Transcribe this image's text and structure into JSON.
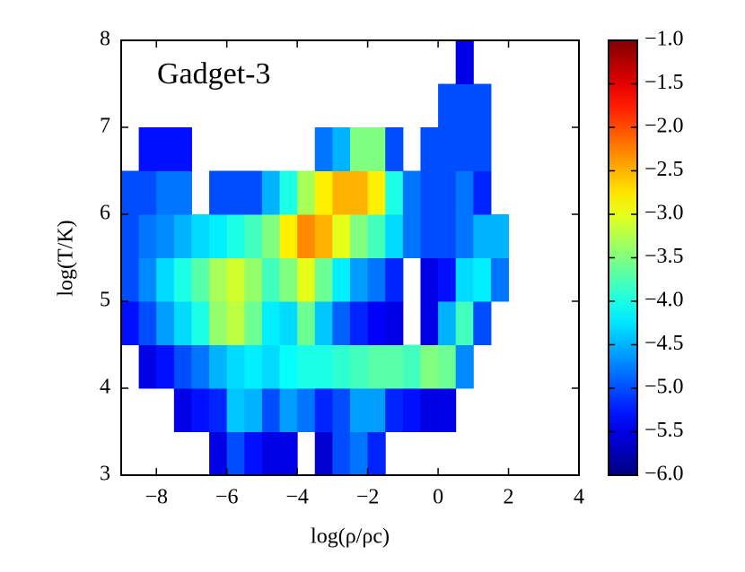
{
  "chart_data": {
    "type": "heatmap",
    "annotation": "Gadget-3",
    "x_label": "log(ρ/ρc)",
    "y_label": "log(T/K)",
    "xlim": [
      -9,
      4
    ],
    "ylim": [
      3,
      8
    ],
    "xticks": [
      {
        "value": -8,
        "label": "−8"
      },
      {
        "value": -6,
        "label": "−6"
      },
      {
        "value": -4,
        "label": "−4"
      },
      {
        "value": -2,
        "label": "−2"
      },
      0,
      2,
      4
    ],
    "yticks": [
      3,
      4,
      5,
      6,
      7,
      8
    ],
    "clim": [
      -6,
      -1
    ],
    "cticks": [
      {
        "value": -1,
        "label": "−1.0"
      },
      {
        "value": -1.5,
        "label": "−1.5"
      },
      {
        "value": -2,
        "label": "−2.0"
      },
      {
        "value": -2.5,
        "label": "−2.5"
      },
      {
        "value": -3,
        "label": "−3.0"
      },
      {
        "value": -3.5,
        "label": "−3.5"
      },
      {
        "value": -4,
        "label": "−4.0"
      },
      {
        "value": -4.5,
        "label": "−4.5"
      },
      {
        "value": -5,
        "label": "−5.0"
      },
      {
        "value": -5.5,
        "label": "−5.5"
      },
      {
        "value": -6,
        "label": "−6.0"
      }
    ],
    "colormap": "jet",
    "xbins": [
      -9,
      -8.5,
      -8,
      -7.5,
      -7,
      -6.5,
      -6,
      -5.5,
      -5,
      -4.5,
      -4,
      -3.5,
      -3,
      -2.5,
      -2,
      -1.5,
      -1,
      -0.5,
      0,
      0.5,
      1,
      1.5,
      2,
      2.5
    ],
    "ybins": [
      3,
      3.5,
      4,
      4.5,
      5,
      5.5,
      6,
      6.5,
      7,
      7.5,
      8
    ],
    "z": [
      [
        null,
        null,
        null,
        null,
        null,
        -5.5,
        -5,
        -5.3,
        -5.5,
        -5.5,
        null,
        -5.6,
        -5,
        -4.8,
        -5.2,
        null,
        null,
        null,
        null,
        null,
        null,
        null,
        null
      ],
      [
        null,
        null,
        null,
        -5.5,
        -5.3,
        -5.2,
        -4.4,
        -4.5,
        -5,
        -4.6,
        -4.8,
        -5.2,
        -5,
        -4.6,
        -4.6,
        -5.2,
        -5.3,
        -5.5,
        -5.5,
        null,
        null,
        null,
        null
      ],
      [
        null,
        -5.5,
        -5.3,
        -5,
        -4.8,
        -4.5,
        -4.3,
        -4.2,
        -4.3,
        -4.1,
        -4,
        -4,
        -3.9,
        -3.8,
        -3.7,
        -3.7,
        -3.8,
        -3.5,
        -3.6,
        -4.7,
        null,
        null,
        null
      ],
      [
        -5.3,
        -5,
        -4.6,
        -4.3,
        -4,
        -3.4,
        -3.2,
        -3.6,
        -4.2,
        -4.3,
        -3.6,
        -4.4,
        -4.9,
        -5.2,
        -5.4,
        -5.5,
        null,
        -5.5,
        -4.5,
        -3.8,
        -5,
        null,
        null
      ],
      [
        -5,
        -4.7,
        -4.3,
        -4,
        -3.7,
        -3.3,
        -3.1,
        -3.4,
        -3.8,
        -3.5,
        -3,
        -3.6,
        -4.2,
        -4.6,
        -4.8,
        -5.2,
        null,
        -5.5,
        -5.3,
        -4.3,
        -4.2,
        -4.8,
        null
      ],
      [
        -5,
        -4.8,
        -4.7,
        -4.5,
        -4.3,
        -4.2,
        -4,
        -3.8,
        -3.5,
        -2.8,
        -2.3,
        -2.5,
        -3,
        -3.5,
        -3.8,
        -4.3,
        -4.8,
        -5,
        -5,
        -4.8,
        -4.5,
        -4.5,
        null
      ],
      [
        -5,
        -5,
        -4.8,
        -4.8,
        null,
        -5,
        -5,
        -5,
        -4.5,
        -4,
        -3.3,
        -2.8,
        -2.5,
        -2.5,
        -2.8,
        -4,
        -4.8,
        -5,
        -5,
        -4.8,
        -5.2,
        null,
        null
      ],
      [
        null,
        -5.3,
        -5.3,
        -5.3,
        null,
        null,
        null,
        null,
        null,
        null,
        null,
        -4.8,
        -4.5,
        -3.5,
        -3.5,
        -5,
        null,
        -5,
        -5,
        -5,
        -5,
        null,
        null
      ],
      [
        null,
        null,
        null,
        null,
        null,
        null,
        null,
        null,
        null,
        null,
        null,
        null,
        null,
        null,
        null,
        null,
        null,
        null,
        -5,
        -5,
        -5,
        null,
        null
      ],
      [
        null,
        null,
        null,
        null,
        null,
        null,
        null,
        null,
        null,
        null,
        null,
        null,
        null,
        null,
        null,
        null,
        null,
        null,
        null,
        -5.5,
        null,
        null,
        null
      ]
    ]
  }
}
